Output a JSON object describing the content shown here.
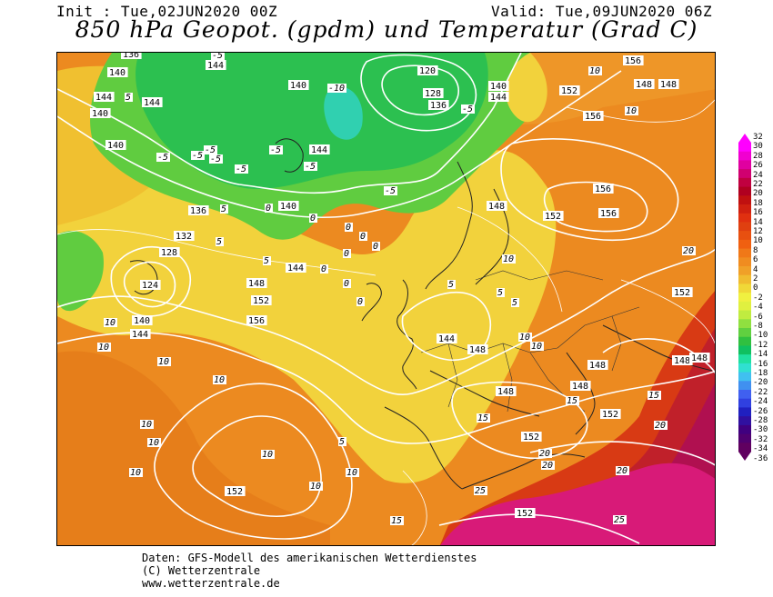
{
  "header": {
    "init": "Init : Tue,02JUN2020 00Z",
    "valid": "Valid: Tue,09JUN2020 06Z",
    "title": "850 hPa Geopot. (gpdm) und Temperatur (Grad C)"
  },
  "colorbar": {
    "labels": [
      "32",
      "30",
      "28",
      "26",
      "24",
      "22",
      "20",
      "18",
      "16",
      "14",
      "12",
      "10",
      "8",
      "6",
      "4",
      "2",
      "0",
      "-2",
      "-4",
      "-6",
      "-8",
      "-10",
      "-12",
      "-14",
      "-16",
      "-18",
      "-20",
      "-22",
      "-24",
      "-26",
      "-28",
      "-30",
      "-32",
      "-34",
      "-36"
    ],
    "colors": [
      "#ff00ff",
      "#f000d0",
      "#e000a0",
      "#d00070",
      "#c00040",
      "#b00020",
      "#c01010",
      "#d02010",
      "#e03010",
      "#e04010",
      "#e85010",
      "#f06010",
      "#f07818",
      "#f08c20",
      "#f0a028",
      "#f0bc30",
      "#f0d838",
      "#f0f040",
      "#e0f040",
      "#c0ec40",
      "#90e040",
      "#60d040",
      "#30c040",
      "#10c060",
      "#20e0a0",
      "#30e0d0",
      "#40c0f0",
      "#4090f0",
      "#4060f0",
      "#3040e0",
      "#2020c0",
      "#3010a0",
      "#400080",
      "#500070",
      "#600060"
    ]
  },
  "map": {
    "geopotential_labels": [
      "136",
      "140",
      "144",
      "144",
      "140",
      "144",
      "120",
      "128",
      "136",
      "140",
      "144",
      "140",
      "152",
      "156",
      "148",
      "140",
      "144",
      "136",
      "132",
      "128",
      "124",
      "140",
      "144",
      "144",
      "140",
      "148",
      "152",
      "156",
      "144",
      "148",
      "148",
      "148",
      "148",
      "152",
      "148",
      "148",
      "152",
      "156",
      "148",
      "152",
      "152",
      "152",
      "156",
      "156",
      "148",
      "152"
    ],
    "temperature_labels": [
      "5",
      "10",
      "10",
      "-5",
      "-5",
      "-10",
      "-5",
      "-5",
      "-5",
      "-5",
      "-5",
      "-5",
      "-5",
      "-5",
      "0",
      "0",
      "0",
      "0",
      "0",
      "0",
      "0",
      "0",
      "0",
      "5",
      "5",
      "5",
      "5",
      "5",
      "10",
      "10",
      "10",
      "10",
      "10",
      "10",
      "10",
      "10",
      "10",
      "10",
      "15",
      "15",
      "15",
      "20",
      "20",
      "20",
      "20",
      "20",
      "25",
      "25",
      "15",
      "10",
      "5",
      "5",
      "10",
      "10"
    ]
  },
  "footer": {
    "line1": "Daten: GFS-Modell des amerikanischen Wetterdienstes",
    "line2": "(C) Wetterzentrale",
    "line3": "www.wetterzentrale.de"
  }
}
